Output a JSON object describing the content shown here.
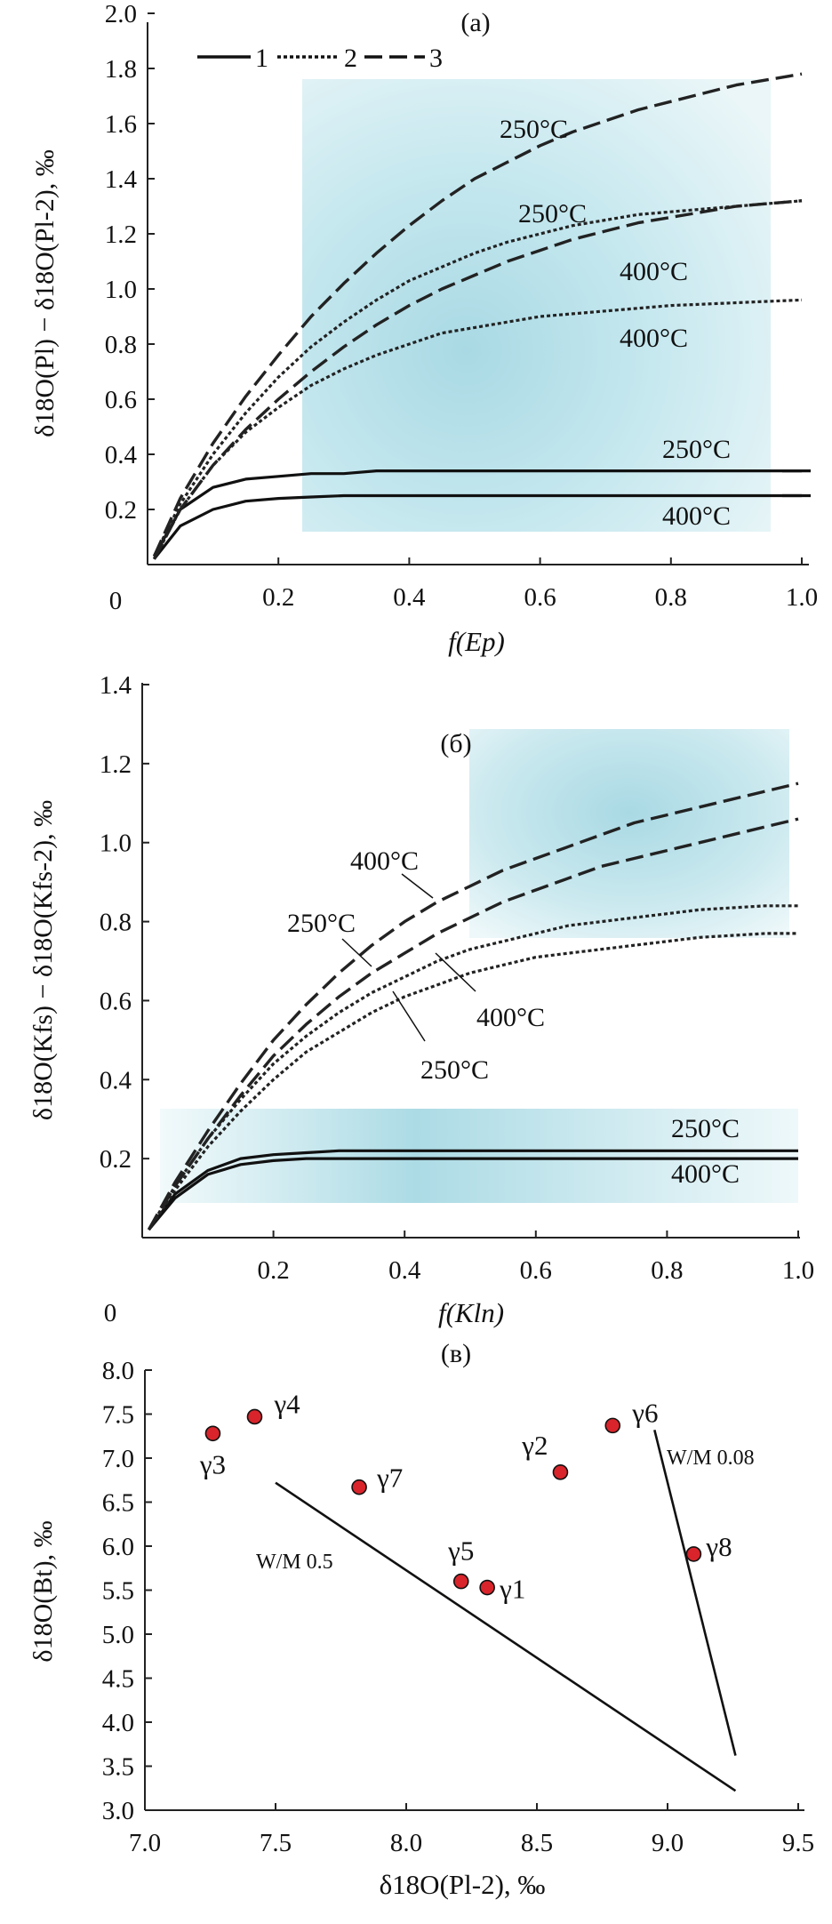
{
  "chart_data": [
    {
      "panel": "a",
      "type": "line",
      "title": "(а)",
      "xlabel": "f(Ep)",
      "ylabel": "δ18O(Pl) − δ18O(Pl-2), ‰",
      "xlim": [
        0,
        1.0
      ],
      "ylim": [
        0,
        2.0
      ],
      "x_ticks": [
        "0",
        "0.2",
        "0.4",
        "0.6",
        "0.8",
        "1.0"
      ],
      "y_ticks": [
        "0.2",
        "0.4",
        "0.6",
        "0.8",
        "1.0",
        "1.2",
        "1.4",
        "1.6",
        "1.8",
        "2.0"
      ],
      "legend": [
        {
          "label": "1",
          "style": "solid"
        },
        {
          "label": "2",
          "style": "dotted"
        },
        {
          "label": "3",
          "style": "dashed"
        }
      ],
      "shaded_region": {
        "x": [
          0.23,
          0.94
        ],
        "y": [
          0.11,
          1.78
        ]
      },
      "x": [
        0.01,
        0.05,
        0.1,
        0.15,
        0.2,
        0.25,
        0.3,
        0.35,
        0.4,
        0.45,
        0.5,
        0.55,
        0.6,
        0.65,
        0.7,
        0.75,
        0.8,
        0.85,
        0.9,
        0.95,
        1.0
      ],
      "series": [
        {
          "name": "1",
          "style": "solid",
          "temperature": "250°C",
          "values": [
            0.03,
            0.2,
            0.28,
            0.31,
            0.32,
            0.33,
            0.33,
            0.34,
            0.34,
            0.34,
            0.34,
            0.34,
            0.34,
            0.34,
            0.34,
            0.34,
            0.34,
            0.34,
            0.34,
            0.34,
            0.34
          ]
        },
        {
          "name": "1",
          "style": "solid",
          "temperature": "400°C",
          "values": [
            0.02,
            0.14,
            0.2,
            0.23,
            0.24,
            0.245,
            0.25,
            0.25,
            0.25,
            0.25,
            0.25,
            0.25,
            0.25,
            0.25,
            0.25,
            0.25,
            0.25,
            0.25,
            0.25,
            0.25,
            0.25
          ]
        },
        {
          "name": "2",
          "style": "dotted",
          "temperature": "250°C",
          "values": [
            0.03,
            0.22,
            0.4,
            0.55,
            0.68,
            0.79,
            0.88,
            0.96,
            1.03,
            1.08,
            1.13,
            1.17,
            1.2,
            1.23,
            1.25,
            1.27,
            1.28,
            1.29,
            1.3,
            1.31,
            1.32
          ]
        },
        {
          "name": "2",
          "style": "dotted",
          "temperature": "400°C",
          "values": [
            0.02,
            0.2,
            0.36,
            0.48,
            0.57,
            0.65,
            0.71,
            0.76,
            0.8,
            0.84,
            0.86,
            0.88,
            0.9,
            0.91,
            0.92,
            0.93,
            0.94,
            0.945,
            0.95,
            0.955,
            0.96
          ]
        },
        {
          "name": "3",
          "style": "dashed",
          "temperature": "250°C",
          "values": [
            0.03,
            0.24,
            0.44,
            0.61,
            0.76,
            0.9,
            1.02,
            1.13,
            1.23,
            1.32,
            1.4,
            1.46,
            1.52,
            1.57,
            1.61,
            1.65,
            1.68,
            1.71,
            1.74,
            1.76,
            1.78
          ]
        },
        {
          "name": "3",
          "style": "dashed",
          "temperature": "400°C",
          "values": [
            0.02,
            0.2,
            0.36,
            0.49,
            0.6,
            0.7,
            0.79,
            0.87,
            0.94,
            1.0,
            1.05,
            1.1,
            1.14,
            1.18,
            1.21,
            1.24,
            1.26,
            1.28,
            1.3,
            1.31,
            1.32
          ]
        }
      ],
      "annotations": [
        "250°C",
        "250°C",
        "400°C",
        "400°C",
        "250°C",
        "400°C"
      ]
    },
    {
      "panel": "b",
      "type": "line",
      "title": "(б)",
      "xlabel": "f(Kln)",
      "ylabel": "δ18O(Kfs) − δ18O(Kfs-2), ‰",
      "xlim": [
        0,
        1.0
      ],
      "ylim": [
        0,
        1.4
      ],
      "x_ticks": [
        "0",
        "0.2",
        "0.4",
        "0.6",
        "0.8",
        "1.0"
      ],
      "y_ticks": [
        "0.2",
        "0.4",
        "0.6",
        "0.8",
        "1.0",
        "1.2",
        "1.4"
      ],
      "shaded_regions": [
        {
          "x": [
            0.5,
            0.98
          ],
          "y": [
            0.75,
            1.27
          ]
        },
        {
          "x": [
            0.02,
            0.98
          ],
          "y": [
            0.08,
            0.31
          ]
        }
      ],
      "x": [
        0.01,
        0.05,
        0.1,
        0.15,
        0.2,
        0.25,
        0.3,
        0.35,
        0.4,
        0.45,
        0.5,
        0.55,
        0.6,
        0.65,
        0.7,
        0.75,
        0.8,
        0.85,
        0.9,
        0.95,
        1.0
      ],
      "series": [
        {
          "name": "1",
          "style": "solid",
          "temperature": "250°C",
          "values": [
            0.02,
            0.11,
            0.17,
            0.2,
            0.21,
            0.215,
            0.22,
            0.22,
            0.22,
            0.22,
            0.22,
            0.22,
            0.22,
            0.22,
            0.22,
            0.22,
            0.22,
            0.22,
            0.22,
            0.22,
            0.22
          ]
        },
        {
          "name": "1",
          "style": "solid",
          "temperature": "400°C",
          "values": [
            0.02,
            0.1,
            0.16,
            0.185,
            0.195,
            0.2,
            0.2,
            0.2,
            0.2,
            0.2,
            0.2,
            0.2,
            0.2,
            0.2,
            0.2,
            0.2,
            0.2,
            0.2,
            0.2,
            0.2,
            0.2
          ]
        },
        {
          "name": "2",
          "style": "dotted",
          "temperature": "400°C",
          "values": [
            0.02,
            0.13,
            0.25,
            0.35,
            0.44,
            0.51,
            0.57,
            0.62,
            0.66,
            0.7,
            0.73,
            0.75,
            0.77,
            0.79,
            0.8,
            0.81,
            0.82,
            0.83,
            0.835,
            0.84,
            0.84
          ]
        },
        {
          "name": "2",
          "style": "dotted",
          "temperature": "250°C",
          "values": [
            0.02,
            0.12,
            0.23,
            0.32,
            0.4,
            0.47,
            0.52,
            0.57,
            0.61,
            0.64,
            0.67,
            0.69,
            0.71,
            0.72,
            0.73,
            0.74,
            0.75,
            0.76,
            0.765,
            0.77,
            0.77
          ]
        },
        {
          "name": "3",
          "style": "dashed",
          "temperature": "400°C",
          "values": [
            0.02,
            0.14,
            0.27,
            0.39,
            0.5,
            0.59,
            0.67,
            0.74,
            0.8,
            0.85,
            0.89,
            0.93,
            0.96,
            0.99,
            1.02,
            1.05,
            1.07,
            1.09,
            1.11,
            1.13,
            1.15
          ]
        },
        {
          "name": "3",
          "style": "dashed",
          "temperature": "250°C",
          "values": [
            0.02,
            0.13,
            0.25,
            0.36,
            0.46,
            0.54,
            0.61,
            0.67,
            0.72,
            0.77,
            0.81,
            0.85,
            0.88,
            0.91,
            0.94,
            0.96,
            0.98,
            1.0,
            1.02,
            1.04,
            1.06
          ]
        }
      ],
      "annotations": [
        "400°C",
        "250°C",
        "400°C",
        "250°C",
        "250°C",
        "400°C"
      ]
    },
    {
      "panel": "c",
      "type": "scatter",
      "title": "(в)",
      "xlabel": "δ18O(Pl-2), ‰",
      "ylabel": "δ18O(Bt), ‰",
      "xlim": [
        7.0,
        9.5
      ],
      "ylim": [
        3.0,
        8.0
      ],
      "x_ticks": [
        "7.0",
        "7.5",
        "8.0",
        "8.5",
        "9.0",
        "9.5"
      ],
      "y_ticks": [
        "3.0",
        "3.5",
        "4.0",
        "4.5",
        "5.0",
        "5.5",
        "6.0",
        "6.5",
        "7.0",
        "7.5",
        "8.0"
      ],
      "points": [
        {
          "label": "γ1",
          "x": 8.31,
          "y": 5.53
        },
        {
          "label": "γ2",
          "x": 8.59,
          "y": 6.84
        },
        {
          "label": "γ3",
          "x": 7.26,
          "y": 7.28
        },
        {
          "label": "γ4",
          "x": 7.42,
          "y": 7.47
        },
        {
          "label": "γ5",
          "x": 8.21,
          "y": 5.6
        },
        {
          "label": "γ6",
          "x": 8.79,
          "y": 7.37
        },
        {
          "label": "γ7",
          "x": 7.82,
          "y": 6.67
        },
        {
          "label": "γ8",
          "x": 9.1,
          "y": 5.91
        }
      ],
      "lines": [
        {
          "label": "W/M 0.5",
          "x": [
            7.5,
            9.26
          ],
          "y": [
            6.72,
            3.22
          ]
        },
        {
          "label": "W/M 0.08",
          "x": [
            8.95,
            9.26
          ],
          "y": [
            7.32,
            3.62
          ]
        }
      ]
    }
  ]
}
